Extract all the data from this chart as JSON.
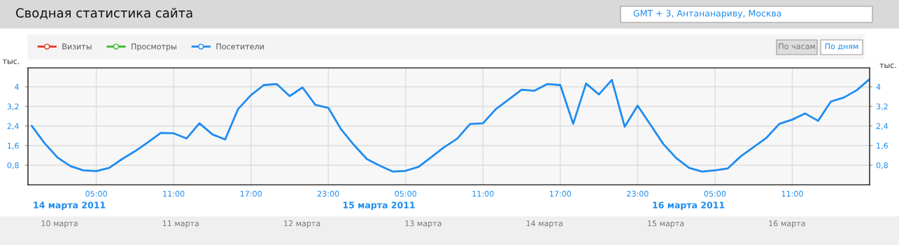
{
  "chart_data": {
    "type": "line",
    "title": "Сводная статистика сайта",
    "x": [
      "2011-03-14T00:00",
      "2011-03-14T01:00",
      "2011-03-14T02:00",
      "2011-03-14T03:00",
      "2011-03-14T04:00",
      "2011-03-14T05:00",
      "2011-03-14T06:00",
      "2011-03-14T07:00",
      "2011-03-14T08:00",
      "2011-03-14T09:00",
      "2011-03-14T10:00",
      "2011-03-14T11:00",
      "2011-03-14T12:00",
      "2011-03-14T13:00",
      "2011-03-14T14:00",
      "2011-03-14T15:00",
      "2011-03-14T16:00",
      "2011-03-14T17:00",
      "2011-03-14T18:00",
      "2011-03-14T19:00",
      "2011-03-14T20:00",
      "2011-03-14T21:00",
      "2011-03-14T22:00",
      "2011-03-14T23:00",
      "2011-03-15T00:00",
      "2011-03-15T01:00",
      "2011-03-15T02:00",
      "2011-03-15T03:00",
      "2011-03-15T04:00",
      "2011-03-15T05:00",
      "2011-03-15T06:00",
      "2011-03-15T07:00",
      "2011-03-15T08:00",
      "2011-03-15T09:00",
      "2011-03-15T10:00",
      "2011-03-15T11:00",
      "2011-03-15T12:00",
      "2011-03-15T13:00",
      "2011-03-15T14:00",
      "2011-03-15T15:00",
      "2011-03-15T16:00",
      "2011-03-15T17:00",
      "2011-03-15T18:00",
      "2011-03-15T19:00",
      "2011-03-15T20:00",
      "2011-03-15T21:00",
      "2011-03-15T22:00",
      "2011-03-15T23:00",
      "2011-03-16T00:00",
      "2011-03-16T01:00",
      "2011-03-16T02:00",
      "2011-03-16T03:00",
      "2011-03-16T04:00",
      "2011-03-16T05:00",
      "2011-03-16T06:00",
      "2011-03-16T07:00",
      "2011-03-16T08:00",
      "2011-03-16T09:00",
      "2011-03-16T10:00",
      "2011-03-16T11:00",
      "2011-03-16T12:00",
      "2011-03-16T13:00",
      "2011-03-16T14:00",
      "2011-03-16T15:00",
      "2011-03-16T16:00",
      "2011-03-16T17:00"
    ],
    "series": [
      {
        "name": "Визиты",
        "color": "#e8381c",
        "values": [
          null,
          null,
          null,
          null,
          null,
          null,
          null,
          null,
          null,
          null,
          null,
          null,
          null,
          null,
          null,
          null,
          null,
          null,
          null,
          null,
          null,
          null,
          null,
          null,
          null,
          null,
          null,
          null,
          null,
          null,
          null,
          null,
          null,
          null,
          null,
          null,
          null,
          null,
          null,
          null,
          null,
          null,
          null,
          null,
          null,
          null,
          null,
          null,
          null,
          null,
          null,
          null,
          null,
          null,
          null,
          null,
          null,
          null,
          null,
          null,
          null,
          null,
          null,
          null,
          null,
          null
        ]
      },
      {
        "name": "Просмотры",
        "color": "#3cb82c",
        "values": [
          null,
          null,
          null,
          null,
          null,
          null,
          null,
          null,
          null,
          null,
          null,
          null,
          null,
          null,
          null,
          null,
          null,
          null,
          null,
          null,
          null,
          null,
          null,
          null,
          null,
          null,
          null,
          null,
          null,
          null,
          null,
          null,
          null,
          null,
          null,
          null,
          null,
          null,
          null,
          null,
          null,
          null,
          null,
          null,
          null,
          null,
          null,
          null,
          null,
          null,
          null,
          null,
          null,
          null,
          null,
          null,
          null,
          null,
          null,
          null,
          null,
          null,
          null,
          null,
          null,
          null
        ]
      },
      {
        "name": "Посетители",
        "color": "#1e8cf0",
        "values": [
          2.4,
          1.69,
          1.11,
          0.76,
          0.59,
          0.56,
          0.69,
          1.05,
          1.37,
          1.73,
          2.12,
          2.1,
          1.89,
          2.51,
          2.06,
          1.85,
          3.09,
          3.66,
          4.07,
          4.11,
          3.62,
          3.97,
          3.26,
          3.14,
          2.26,
          1.62,
          1.05,
          0.78,
          0.54,
          0.57,
          0.73,
          1.13,
          1.54,
          1.88,
          2.48,
          2.51,
          3.09,
          3.48,
          3.88,
          3.84,
          4.11,
          4.07,
          2.49,
          4.13,
          3.69,
          4.28,
          2.37,
          3.23,
          2.45,
          1.66,
          1.09,
          0.69,
          0.54,
          0.59,
          0.67,
          1.16,
          1.54,
          1.92,
          2.49,
          2.66,
          2.91,
          2.61,
          3.4,
          3.56,
          3.86,
          4.31
        ]
      }
    ],
    "xlim": [
      "2011-03-13T23:42",
      "2011-03-16T17:00"
    ],
    "xticks": [
      {
        "value": "2011-03-14T05:00",
        "label": "05:00"
      },
      {
        "value": "2011-03-14T11:00",
        "label": "11:00"
      },
      {
        "value": "2011-03-14T17:00",
        "label": "17:00"
      },
      {
        "value": "2011-03-14T23:00",
        "label": "23:00"
      },
      {
        "value": "2011-03-15T05:00",
        "label": "05:00"
      },
      {
        "value": "2011-03-15T11:00",
        "label": "11:00"
      },
      {
        "value": "2011-03-15T17:00",
        "label": "17:00"
      },
      {
        "value": "2011-03-15T23:00",
        "label": "23:00"
      },
      {
        "value": "2011-03-16T05:00",
        "label": "05:00"
      },
      {
        "value": "2011-03-16T11:00",
        "label": "11:00"
      }
    ],
    "ylim": [
      0,
      4.77
    ],
    "yticks": [
      {
        "value": 0.8,
        "label": "0,8"
      },
      {
        "value": 1.6,
        "label": "1,6"
      },
      {
        "value": 2.4,
        "label": "2,4"
      },
      {
        "value": 3.2,
        "label": "3,2"
      },
      {
        "value": 4,
        "label": "4"
      }
    ],
    "y2lim": [
      0,
      4.77
    ],
    "y2ticks": [
      {
        "value": 0.8,
        "label": "0,8"
      },
      {
        "value": 1.6,
        "label": "1,6"
      },
      {
        "value": 2.4,
        "label": "2,4"
      },
      {
        "value": 3.2,
        "label": "3,2"
      },
      {
        "value": 4,
        "label": "4"
      }
    ],
    "ylabel": "тыс.",
    "y2label": "тыс.",
    "grid": true,
    "legend": "top left",
    "marker": "none",
    "line_style": "solid",
    "annotations": [
      "GMT + 3, Антананариву, Москва",
      "По часам",
      "По дням",
      "10 марта",
      "11 марта",
      "12 марта",
      "13 марта",
      "14 марта",
      "15 марта",
      "16 марта",
      "14 марта 2011",
      "15 марта 2011",
      "16 марта 2011"
    ]
  }
}
